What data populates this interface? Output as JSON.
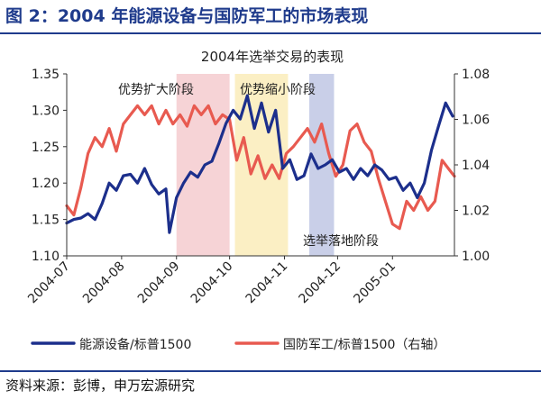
{
  "figure_title": "图 2：2004 年能源设备与国防军工的市场表现",
  "source": "资料来源：彭博，申万宏源研究",
  "chart_data": {
    "type": "line",
    "title": "2004年选举交易的表现",
    "x_ticks": [
      "2004-07",
      "2004-08",
      "2004-09",
      "2004-10",
      "2004-11",
      "2004-12",
      "2005-01"
    ],
    "x_range": [
      "2004-07-01",
      "2005-02-05"
    ],
    "y_left": {
      "range": [
        1.1,
        1.35
      ],
      "ticks": [
        "1.10",
        "1.15",
        "1.20",
        "1.25",
        "1.30",
        "1.35"
      ]
    },
    "y_right": {
      "range": [
        1.0,
        1.08
      ],
      "ticks": [
        "1.00",
        "1.02",
        "1.04",
        "1.06",
        "1.08"
      ]
    },
    "grid": false,
    "legend_position": "bottom",
    "phases": [
      {
        "label": "优势扩大阶段",
        "start": "2004-09-01",
        "end": "2004-10-01",
        "color": "#f6d3d6"
      },
      {
        "label": "优势缩小阶段",
        "start": "2004-10-04",
        "end": "2004-11-03",
        "color": "#fbefc4"
      },
      {
        "label": "选举落地阶段",
        "start": "2004-11-15",
        "end": "2004-11-29",
        "color": "#c9cfe8"
      }
    ],
    "series": [
      {
        "name": "能源设备/标普1500",
        "axis": "left",
        "color": "#1c2f8c",
        "points": [
          [
            "2004-07-01",
            1.145
          ],
          [
            "2004-07-05",
            1.15
          ],
          [
            "2004-07-09",
            1.152
          ],
          [
            "2004-07-13",
            1.158
          ],
          [
            "2004-07-17",
            1.15
          ],
          [
            "2004-07-21",
            1.172
          ],
          [
            "2004-07-25",
            1.2
          ],
          [
            "2004-07-29",
            1.19
          ],
          [
            "2004-08-02",
            1.21
          ],
          [
            "2004-08-06",
            1.212
          ],
          [
            "2004-08-10",
            1.2
          ],
          [
            "2004-08-14",
            1.22
          ],
          [
            "2004-08-18",
            1.198
          ],
          [
            "2004-08-22",
            1.185
          ],
          [
            "2004-08-26",
            1.192
          ],
          [
            "2004-08-28",
            1.132
          ],
          [
            "2004-09-01",
            1.18
          ],
          [
            "2004-09-05",
            1.2
          ],
          [
            "2004-09-09",
            1.215
          ],
          [
            "2004-09-13",
            1.208
          ],
          [
            "2004-09-17",
            1.225
          ],
          [
            "2004-09-21",
            1.23
          ],
          [
            "2004-09-25",
            1.255
          ],
          [
            "2004-09-29",
            1.282
          ],
          [
            "2004-10-03",
            1.3
          ],
          [
            "2004-10-07",
            1.288
          ],
          [
            "2004-10-11",
            1.32
          ],
          [
            "2004-10-15",
            1.275
          ],
          [
            "2004-10-19",
            1.31
          ],
          [
            "2004-10-23",
            1.27
          ],
          [
            "2004-10-27",
            1.3
          ],
          [
            "2004-10-31",
            1.22
          ],
          [
            "2004-11-04",
            1.232
          ],
          [
            "2004-11-08",
            1.205
          ],
          [
            "2004-11-12",
            1.21
          ],
          [
            "2004-11-16",
            1.24
          ],
          [
            "2004-11-20",
            1.22
          ],
          [
            "2004-11-24",
            1.225
          ],
          [
            "2004-11-28",
            1.232
          ],
          [
            "2004-12-02",
            1.215
          ],
          [
            "2004-12-06",
            1.22
          ],
          [
            "2004-12-10",
            1.205
          ],
          [
            "2004-12-14",
            1.22
          ],
          [
            "2004-12-18",
            1.21
          ],
          [
            "2004-12-22",
            1.225
          ],
          [
            "2004-12-26",
            1.218
          ],
          [
            "2004-12-30",
            1.205
          ],
          [
            "2005-01-03",
            1.208
          ],
          [
            "2005-01-07",
            1.19
          ],
          [
            "2005-01-11",
            1.2
          ],
          [
            "2005-01-15",
            1.18
          ],
          [
            "2005-01-19",
            1.2
          ],
          [
            "2005-01-23",
            1.245
          ],
          [
            "2005-01-27",
            1.278
          ],
          [
            "2005-01-31",
            1.31
          ],
          [
            "2005-02-04",
            1.292
          ]
        ]
      },
      {
        "name": "国防军工/标普1500（右轴）",
        "axis": "right",
        "color": "#e85a50",
        "points": [
          [
            "2004-07-01",
            1.022
          ],
          [
            "2004-07-05",
            1.018
          ],
          [
            "2004-07-09",
            1.03
          ],
          [
            "2004-07-13",
            1.045
          ],
          [
            "2004-07-17",
            1.052
          ],
          [
            "2004-07-21",
            1.048
          ],
          [
            "2004-07-25",
            1.056
          ],
          [
            "2004-07-29",
            1.046
          ],
          [
            "2004-08-02",
            1.058
          ],
          [
            "2004-08-06",
            1.062
          ],
          [
            "2004-08-10",
            1.066
          ],
          [
            "2004-08-14",
            1.062
          ],
          [
            "2004-08-18",
            1.066
          ],
          [
            "2004-08-22",
            1.058
          ],
          [
            "2004-08-26",
            1.064
          ],
          [
            "2004-08-30",
            1.058
          ],
          [
            "2004-09-03",
            1.062
          ],
          [
            "2004-09-07",
            1.057
          ],
          [
            "2004-09-11",
            1.066
          ],
          [
            "2004-09-15",
            1.062
          ],
          [
            "2004-09-19",
            1.066
          ],
          [
            "2004-09-23",
            1.058
          ],
          [
            "2004-09-27",
            1.062
          ],
          [
            "2004-10-01",
            1.06
          ],
          [
            "2004-10-05",
            1.042
          ],
          [
            "2004-10-09",
            1.052
          ],
          [
            "2004-10-13",
            1.036
          ],
          [
            "2004-10-17",
            1.044
          ],
          [
            "2004-10-21",
            1.034
          ],
          [
            "2004-10-25",
            1.04
          ],
          [
            "2004-10-29",
            1.034
          ],
          [
            "2004-11-02",
            1.045
          ],
          [
            "2004-11-06",
            1.048
          ],
          [
            "2004-11-10",
            1.052
          ],
          [
            "2004-11-14",
            1.056
          ],
          [
            "2004-11-18",
            1.05
          ],
          [
            "2004-11-22",
            1.058
          ],
          [
            "2004-11-26",
            1.045
          ],
          [
            "2004-11-30",
            1.035
          ],
          [
            "2004-12-04",
            1.04
          ],
          [
            "2004-12-08",
            1.055
          ],
          [
            "2004-12-12",
            1.058
          ],
          [
            "2004-12-16",
            1.05
          ],
          [
            "2004-12-20",
            1.046
          ],
          [
            "2004-12-24",
            1.034
          ],
          [
            "2004-12-28",
            1.024
          ],
          [
            "2005-01-01",
            1.014
          ],
          [
            "2005-01-05",
            1.012
          ],
          [
            "2005-01-09",
            1.024
          ],
          [
            "2005-01-13",
            1.02
          ],
          [
            "2005-01-17",
            1.026
          ],
          [
            "2005-01-21",
            1.02
          ],
          [
            "2005-01-25",
            1.024
          ],
          [
            "2005-01-29",
            1.042
          ],
          [
            "2005-02-02",
            1.038
          ],
          [
            "2005-02-05",
            1.035
          ]
        ]
      }
    ]
  }
}
